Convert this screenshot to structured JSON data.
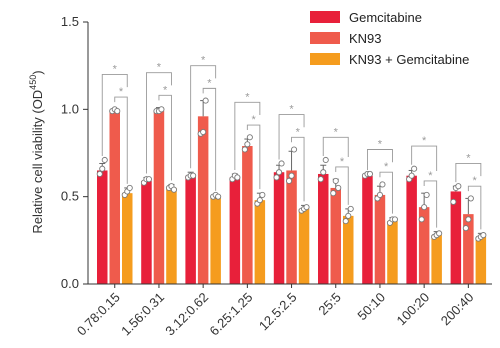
{
  "chart_data": {
    "type": "bar",
    "categories": [
      "0.78:0.15",
      "1.56:0.31",
      "3.12:0.62",
      "6.25:1.25",
      "12.5:2.5",
      "25:5",
      "50:10",
      "100:20",
      "200:40"
    ],
    "ylabel_main": "Relative cell viability (OD",
    "ylabel_sup": "450",
    "ylabel_close": ")",
    "ylim": [
      0,
      1.5
    ],
    "yticks": [
      0.0,
      0.5,
      1.0,
      1.5
    ],
    "ytick_labels": [
      "0.0",
      "0.5",
      "1.0",
      "1.5"
    ],
    "legend_position": "top-right",
    "significance_marker": "*",
    "series": [
      {
        "name": "Gemcitabine",
        "color": "#e8203a",
        "values": [
          0.65,
          0.59,
          0.62,
          0.61,
          0.64,
          0.63,
          0.62,
          0.62,
          0.53
        ],
        "errors": [
          0.04,
          0.02,
          0.02,
          0.02,
          0.04,
          0.05,
          0.01,
          0.03,
          0.03
        ],
        "points": [
          [
            0.63,
            0.66,
            0.71
          ],
          [
            0.58,
            0.6,
            0.6
          ],
          [
            0.61,
            0.62,
            0.62
          ],
          [
            0.6,
            0.62,
            0.61
          ],
          [
            0.61,
            0.64,
            0.69
          ],
          [
            0.6,
            0.64,
            0.71
          ],
          [
            0.62,
            0.63,
            0.63
          ],
          [
            0.6,
            0.62,
            0.66
          ],
          [
            0.47,
            0.55,
            0.56
          ]
        ]
      },
      {
        "name": "KN93",
        "color": "#ef5b4c",
        "values": [
          0.99,
          0.99,
          0.96,
          0.79,
          0.65,
          0.55,
          0.51,
          0.44,
          0.4
        ],
        "errors": [
          0.01,
          0.02,
          0.09,
          0.04,
          0.11,
          0.05,
          0.05,
          0.08,
          0.09
        ],
        "points": [
          [
            0.99,
            1.0,
            0.99
          ],
          [
            0.99,
            0.99,
            1.0
          ],
          [
            0.86,
            0.87,
            1.05
          ],
          [
            0.77,
            0.8,
            0.84
          ],
          [
            0.59,
            0.62,
            0.77
          ],
          [
            0.52,
            0.59,
            0.55
          ],
          [
            0.49,
            0.51,
            0.57
          ],
          [
            0.37,
            0.44,
            0.51
          ],
          [
            0.32,
            0.37,
            0.49
          ]
        ]
      },
      {
        "name": "KN93 + Gemcitabine",
        "color": "#f59c1e",
        "values": [
          0.52,
          0.55,
          0.5,
          0.48,
          0.43,
          0.39,
          0.36,
          0.28,
          0.27
        ],
        "errors": [
          0.03,
          0.02,
          0.01,
          0.04,
          0.02,
          0.04,
          0.02,
          0.02,
          0.02
        ],
        "points": [
          [
            0.51,
            0.53,
            0.55
          ],
          [
            0.55,
            0.56,
            0.54
          ],
          [
            0.5,
            0.51,
            0.5
          ],
          [
            0.46,
            0.48,
            0.51
          ],
          [
            0.42,
            0.43,
            0.44
          ],
          [
            0.36,
            0.39,
            0.43
          ],
          [
            0.35,
            0.37,
            0.37
          ],
          [
            0.27,
            0.28,
            0.29
          ],
          [
            0.26,
            0.27,
            0.28
          ]
        ]
      }
    ]
  }
}
